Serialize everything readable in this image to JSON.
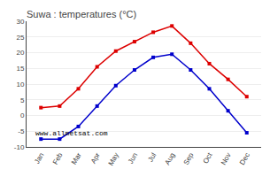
{
  "chart_data": {
    "type": "line",
    "title": "Suwa : temperatures (°C)",
    "categories": [
      "Jan",
      "Feb",
      "Mar",
      "Apr",
      "May",
      "Jun",
      "Jul",
      "Aug",
      "Sep",
      "Oct",
      "Nov",
      "Dec"
    ],
    "series": [
      {
        "color": "#dd0000",
        "values": [
          2.5,
          3.0,
          8.5,
          15.5,
          20.5,
          23.5,
          26.5,
          28.5,
          23.0,
          16.5,
          11.5,
          6.0
        ]
      },
      {
        "color": "#0000cc",
        "values": [
          -7.5,
          -7.5,
          -3.5,
          3.0,
          9.5,
          14.5,
          18.5,
          19.5,
          14.5,
          8.5,
          1.5,
          -5.5
        ]
      }
    ],
    "marker": "square",
    "ylim": [
      -10,
      30
    ],
    "yticks": [
      -10,
      -5,
      0,
      5,
      10,
      15,
      20,
      25,
      30
    ],
    "grid": "y",
    "annotations": [
      "www.allmetsat.com"
    ]
  }
}
